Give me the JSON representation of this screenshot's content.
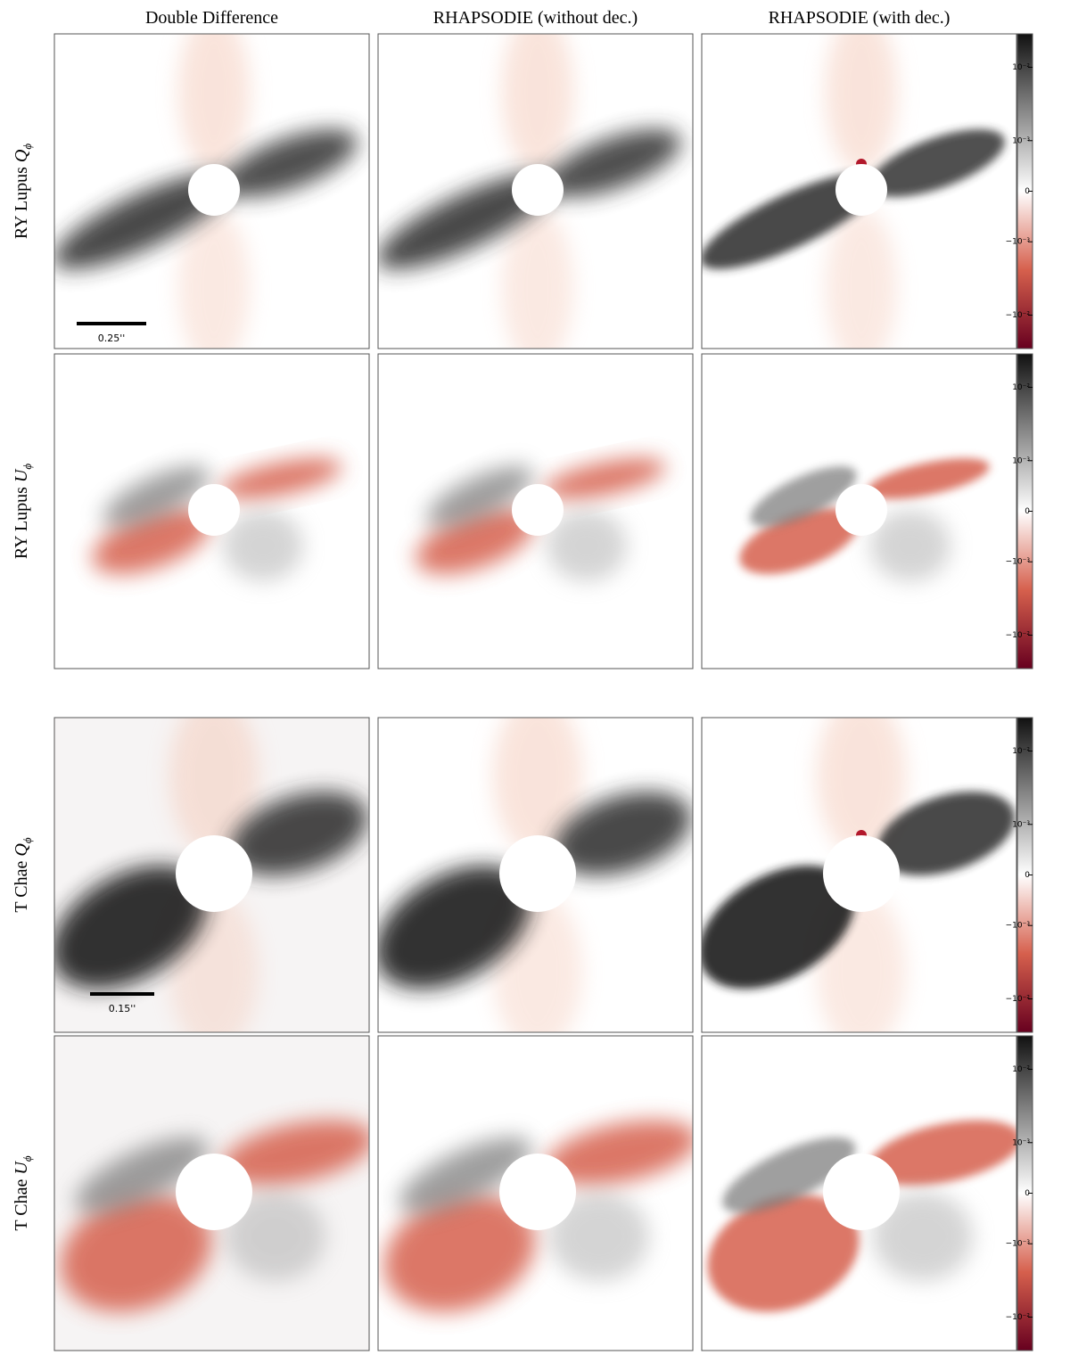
{
  "columns": [
    "Double Difference",
    "RHAPSODIE (without dec.)",
    "RHAPSODIE (with dec.)"
  ],
  "rows": [
    {
      "name": "RY Lupus",
      "symbol": "Q",
      "subscript": "ϕ",
      "scale_bar": "0.25''"
    },
    {
      "name": "RY Lupus",
      "symbol": "U",
      "subscript": "ϕ"
    },
    {
      "name": "T Chae",
      "symbol": "Q",
      "subscript": "ϕ",
      "scale_bar": "0.15''"
    },
    {
      "name": "T Chae",
      "symbol": "U",
      "subscript": "ϕ"
    }
  ],
  "colorbar": {
    "scale": "symlog",
    "linthresh": 0.00032,
    "lim": [
      -0.026,
      0.026
    ],
    "colors": [
      "#67001f",
      "#d6604d",
      "#ffffff",
      "#8a8a8a",
      "#111111"
    ],
    "ticks": [
      {
        "value": 0.01,
        "label": "10⁻²"
      },
      {
        "value": 0.001,
        "label": "10⁻³"
      },
      {
        "value": 0,
        "label": "0"
      },
      {
        "value": -0.001,
        "label": "−10⁻³"
      },
      {
        "value": -0.01,
        "label": "−10⁻²"
      }
    ]
  }
}
